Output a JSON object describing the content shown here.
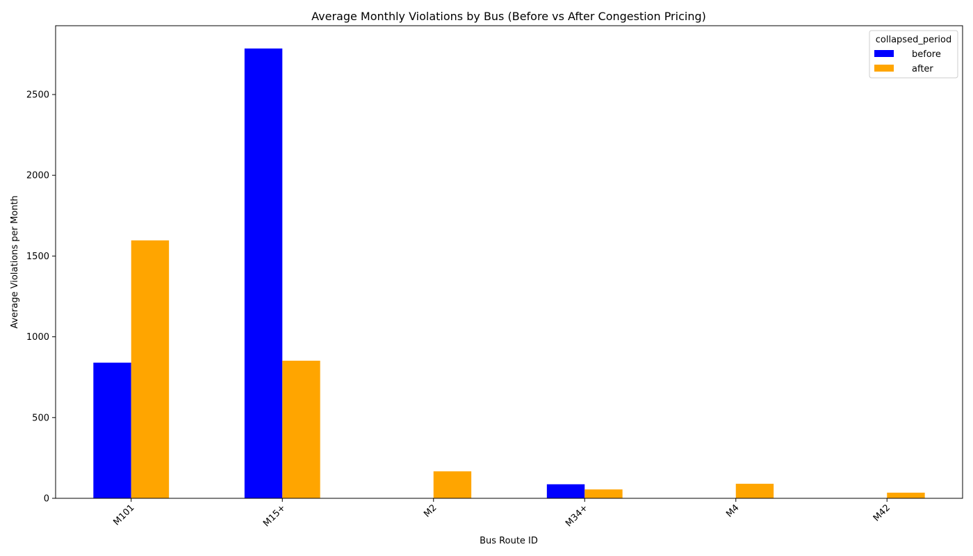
{
  "chart_data": {
    "type": "bar",
    "title": "Average Monthly Violations by Bus (Before vs After Congestion Pricing)",
    "xlabel": "Bus Route ID",
    "ylabel": "Average Violations per Month",
    "categories": [
      "M101",
      "M15+",
      "M2",
      "M34+",
      "M4",
      "M42"
    ],
    "series": [
      {
        "name": "before",
        "color": "#0000ff",
        "values": [
          840,
          2785,
          0,
          87,
          0,
          0
        ]
      },
      {
        "name": "after",
        "color": "#ffa500",
        "values": [
          1597,
          852,
          167,
          55,
          90,
          35
        ]
      }
    ],
    "ylim": [
      0,
      2926
    ],
    "yticks": [
      0,
      500,
      1000,
      1500,
      2000,
      2500
    ],
    "legend": {
      "title": "collapsed_period",
      "position": "top-right"
    },
    "grid": false
  }
}
